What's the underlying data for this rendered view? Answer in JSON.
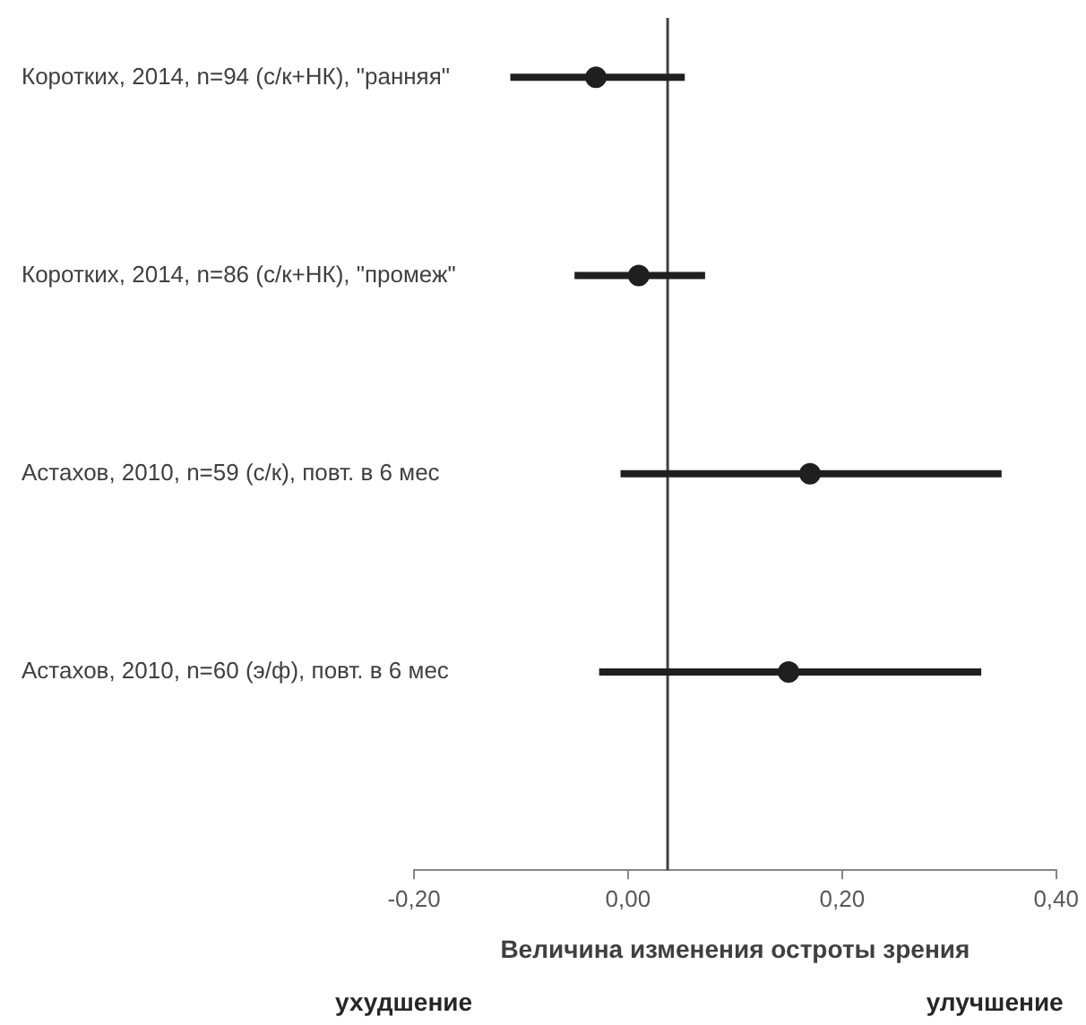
{
  "chart_data": {
    "type": "scatter",
    "orientation": "horizontal",
    "categories": [
      "Коротких, 2014, n=94 (с/к+НК), \"ранняя\"",
      "Коротких, 2014, n=86 (с/к+НК), \"промеж\"",
      "Астахов, 2010, n=59 (с/к), повт. в 6 мес",
      "Астахов, 2010, n=60 (э/ф), повт. в 6 мес"
    ],
    "values": [
      -0.03,
      0.01,
      0.17,
      0.15
    ],
    "errors": [
      [
        -0.11,
        0.053
      ],
      [
        -0.05,
        0.072
      ],
      [
        -0.007,
        0.349
      ],
      [
        -0.027,
        0.33
      ]
    ],
    "color": "#1f1f1f",
    "marker": "circle",
    "grid": false,
    "legend": false,
    "xlabel": "Величина изменения остроты зрения",
    "xlim": [
      -0.2,
      0.4
    ],
    "xticks": [
      {
        "value": -0.2,
        "label": "-0,20"
      },
      {
        "value": 0,
        "label": "0,00"
      },
      {
        "value": 0.2,
        "label": "0,20"
      },
      {
        "value": 0.4,
        "label": "0,40"
      }
    ],
    "ref_lines": [
      {
        "axis": "x",
        "value": 0.037,
        "color": "#404040"
      }
    ],
    "annotations": [
      "ухудшение",
      "улучшение"
    ]
  }
}
